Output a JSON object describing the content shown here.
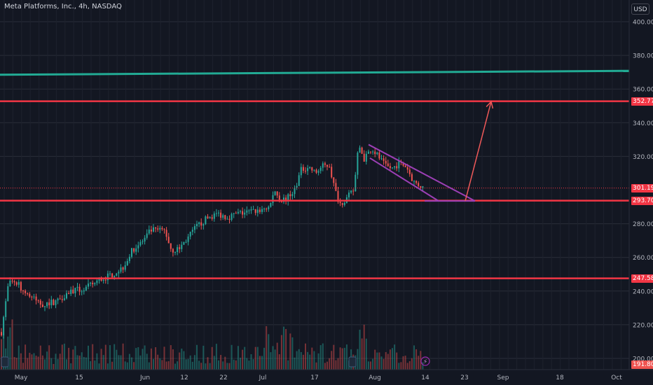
{
  "header": {
    "title": "Meta Platforms, Inc., 4h, NASDAQ",
    "currency_button": "USD"
  },
  "colors": {
    "background": "#131722",
    "grid": "#2a2e39",
    "up": "#26a69a",
    "down": "#ef5350",
    "level_line": "#f23645",
    "trend_line": "#22ab94",
    "channel": "#9c3fb5",
    "arrow": "#f05959",
    "current_price": "#f23645"
  },
  "chart_data": {
    "type": "candlestick",
    "title": "Meta Platforms, Inc., 4h, NASDAQ",
    "ylim": [
      191.5,
      403
    ],
    "x_tick_labels": [
      "May",
      "15",
      "Jun",
      "12",
      "22",
      "Jul",
      "17",
      "Aug",
      "14",
      "23",
      "Sep",
      "18",
      "Oct"
    ],
    "y_tick_labels": [
      "400.00",
      "380.00",
      "360.00",
      "340.00",
      "320.00",
      "280.00",
      "260.00",
      "240.00",
      "220.00",
      "200.00"
    ],
    "y_tick_values": [
      400,
      380,
      360,
      340,
      320,
      280,
      260,
      240,
      220,
      200
    ],
    "price_path": [
      [
        0,
        210
      ],
      [
        12,
        244
      ],
      [
        22,
        246
      ],
      [
        34,
        240
      ],
      [
        46,
        236
      ],
      [
        60,
        232
      ],
      [
        80,
        234
      ],
      [
        100,
        240
      ],
      [
        120,
        241
      ],
      [
        140,
        246
      ],
      [
        160,
        250
      ],
      [
        175,
        254
      ],
      [
        190,
        265
      ],
      [
        205,
        270
      ],
      [
        215,
        276
      ],
      [
        225,
        276
      ],
      [
        235,
        276
      ],
      [
        245,
        264
      ],
      [
        255,
        265
      ],
      [
        265,
        270
      ],
      [
        280,
        278
      ],
      [
        295,
        283
      ],
      [
        310,
        286
      ],
      [
        325,
        284
      ],
      [
        340,
        286
      ],
      [
        355,
        287
      ],
      [
        370,
        288
      ],
      [
        385,
        290
      ],
      [
        392,
        300
      ],
      [
        400,
        294
      ],
      [
        410,
        295
      ],
      [
        420,
        300
      ],
      [
        430,
        312
      ],
      [
        440,
        314
      ],
      [
        450,
        310
      ],
      [
        460,
        314
      ],
      [
        470,
        315
      ],
      [
        478,
        300
      ],
      [
        485,
        292
      ],
      [
        495,
        295
      ],
      [
        505,
        300
      ],
      [
        512,
        327
      ],
      [
        520,
        318
      ],
      [
        530,
        325
      ],
      [
        540,
        320
      ],
      [
        550,
        314
      ],
      [
        560,
        313
      ],
      [
        570,
        316
      ],
      [
        580,
        314
      ],
      [
        590,
        305
      ],
      [
        598,
        303
      ],
      [
        606,
        301
      ]
    ],
    "volume_note": "volume histogram at bottom",
    "horizontal_levels": [
      {
        "value": 352.77,
        "label": "352.77"
      },
      {
        "value": 293.7,
        "label": "293.70"
      },
      {
        "value": 247.58,
        "label": "247.58"
      }
    ],
    "current_price": {
      "value": 301.19,
      "label": "301.19"
    },
    "low_price": {
      "value": 191.8,
      "label": "191.80"
    },
    "trend_line": {
      "from": [
        0,
        368.5
      ],
      "to": [
        898,
        370.8
      ]
    },
    "channel": {
      "upper": {
        "from": [
          526,
          327
        ],
        "to": [
          678,
          293.5
        ]
      },
      "lower": {
        "from": [
          528,
          319
        ],
        "to": [
          626,
          293.5
        ]
      },
      "base": {
        "from": [
          606,
          293.5
        ],
        "to": [
          678,
          293.5
        ]
      }
    },
    "projection_arrow": {
      "from": [
        664,
        293.5
      ],
      "to": [
        701,
        352.5
      ]
    },
    "grid": true,
    "legend": "none"
  }
}
